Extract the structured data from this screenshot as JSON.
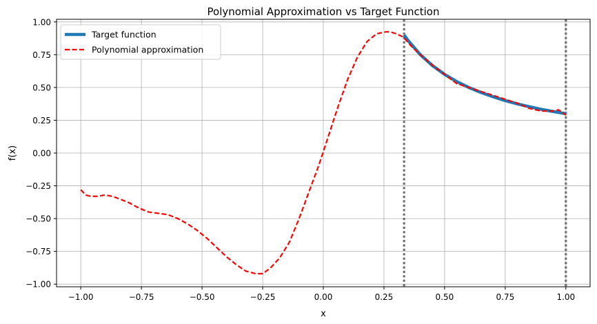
{
  "chart_data": {
    "type": "line",
    "title": "Polynomial Approximation vs Target Function",
    "xlabel": "x",
    "ylabel": "f(x)",
    "xlim": [
      -1.1,
      1.1
    ],
    "ylim": [
      -1.02,
      1.02
    ],
    "grid": true,
    "legend_position": "top-left",
    "x_ticks": [
      -1.0,
      -0.75,
      -0.5,
      -0.25,
      0.0,
      0.25,
      0.5,
      0.75,
      1.0
    ],
    "x_tick_labels": [
      "−1.00",
      "−0.75",
      "−0.50",
      "−0.25",
      "0.00",
      "0.25",
      "0.50",
      "0.75",
      "1.00"
    ],
    "y_ticks": [
      -1.0,
      -0.75,
      -0.5,
      -0.25,
      0.0,
      0.25,
      0.5,
      0.75,
      1.0
    ],
    "y_tick_labels": [
      "−1.00",
      "−0.75",
      "−0.50",
      "−0.25",
      "0.00",
      "0.25",
      "0.50",
      "0.75",
      "1.00"
    ],
    "vertical_lines": [
      0.333,
      1.0
    ],
    "series": [
      {
        "name": "Target function",
        "color": "#1f77b4",
        "style": "solid",
        "x": [
          0.333,
          0.35,
          0.4,
          0.45,
          0.5,
          0.55,
          0.6,
          0.65,
          0.7,
          0.75,
          0.8,
          0.85,
          0.9,
          0.95,
          1.0
        ],
        "y": [
          0.9,
          0.857,
          0.75,
          0.667,
          0.6,
          0.545,
          0.5,
          0.462,
          0.429,
          0.4,
          0.375,
          0.353,
          0.333,
          0.316,
          0.3
        ]
      },
      {
        "name": "Polynomial approximation",
        "color": "#ff0000",
        "style": "dashed",
        "x": [
          -1.0,
          -0.98,
          -0.96,
          -0.93,
          -0.9,
          -0.87,
          -0.84,
          -0.8,
          -0.76,
          -0.72,
          -0.68,
          -0.64,
          -0.6,
          -0.56,
          -0.52,
          -0.48,
          -0.44,
          -0.4,
          -0.36,
          -0.32,
          -0.28,
          -0.25,
          -0.22,
          -0.18,
          -0.14,
          -0.1,
          -0.06,
          -0.02,
          0.0,
          0.03,
          0.06,
          0.1,
          0.14,
          0.18,
          0.22,
          0.26,
          0.28,
          0.3,
          0.33,
          0.36,
          0.4,
          0.45,
          0.5,
          0.55,
          0.6,
          0.65,
          0.7,
          0.75,
          0.8,
          0.85,
          0.9,
          0.95,
          0.97,
          1.0
        ],
        "y": [
          -0.28,
          -0.32,
          -0.33,
          -0.33,
          -0.32,
          -0.33,
          -0.35,
          -0.38,
          -0.42,
          -0.45,
          -0.46,
          -0.47,
          -0.5,
          -0.54,
          -0.59,
          -0.65,
          -0.72,
          -0.79,
          -0.85,
          -0.9,
          -0.92,
          -0.92,
          -0.88,
          -0.8,
          -0.68,
          -0.5,
          -0.3,
          -0.1,
          0.01,
          0.18,
          0.35,
          0.56,
          0.73,
          0.85,
          0.91,
          0.925,
          0.922,
          0.91,
          0.885,
          0.82,
          0.75,
          0.67,
          0.6,
          0.53,
          0.5,
          0.47,
          0.44,
          0.41,
          0.38,
          0.34,
          0.32,
          0.32,
          0.33,
          0.29
        ]
      }
    ]
  }
}
